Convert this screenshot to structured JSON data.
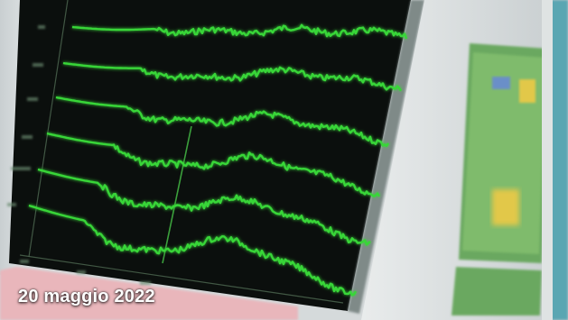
{
  "photo": {
    "subject": "eeg-monitor-screen",
    "trace_color": "#39d639",
    "screen_color": "#0b0f0d"
  },
  "caption": {
    "date": "20 maggio 2022"
  }
}
